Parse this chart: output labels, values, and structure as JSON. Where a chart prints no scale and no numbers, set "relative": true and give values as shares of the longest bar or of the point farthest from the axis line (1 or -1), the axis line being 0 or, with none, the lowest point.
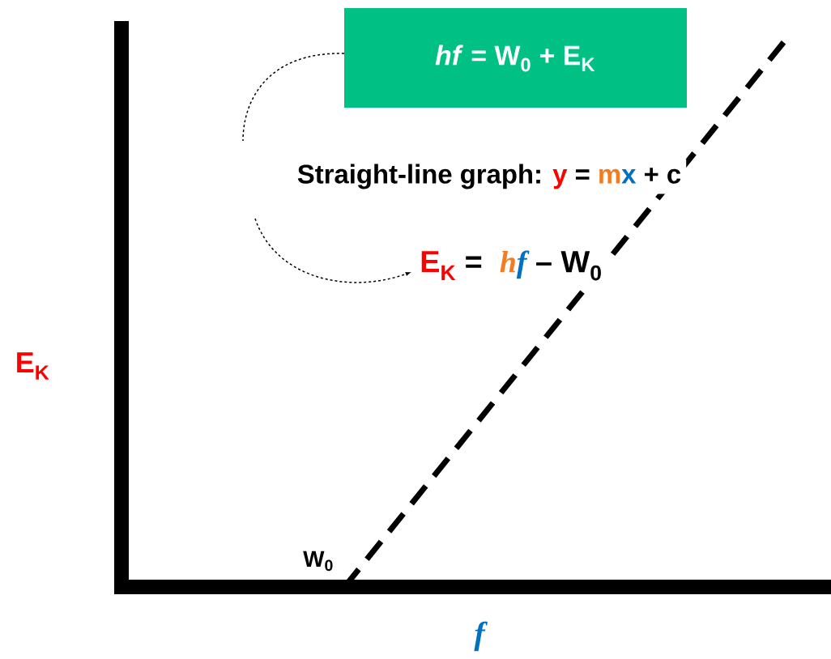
{
  "chart_data": {
    "type": "line",
    "relative": true,
    "xlabel": "f",
    "ylabel": "E$_{K}$",
    "categories": [
      null,
      null,
      null,
      null
    ],
    "series": [
      {
        "color": "#000000",
        "values": [
          null,
          0,
          0.5,
          1
        ]
      }
    ],
    "line_style": "dashed",
    "annotations": [
      "*hf* = W$_{0}$ + E$_{K}$",
      "Straight-line graph: ",
      "y",
      " = ",
      "m",
      "x",
      " + c",
      "E$_{K}$",
      " = ",
      "h",
      "f",
      " – W$_{0}$",
      "W$_{0}$"
    ]
  }
}
